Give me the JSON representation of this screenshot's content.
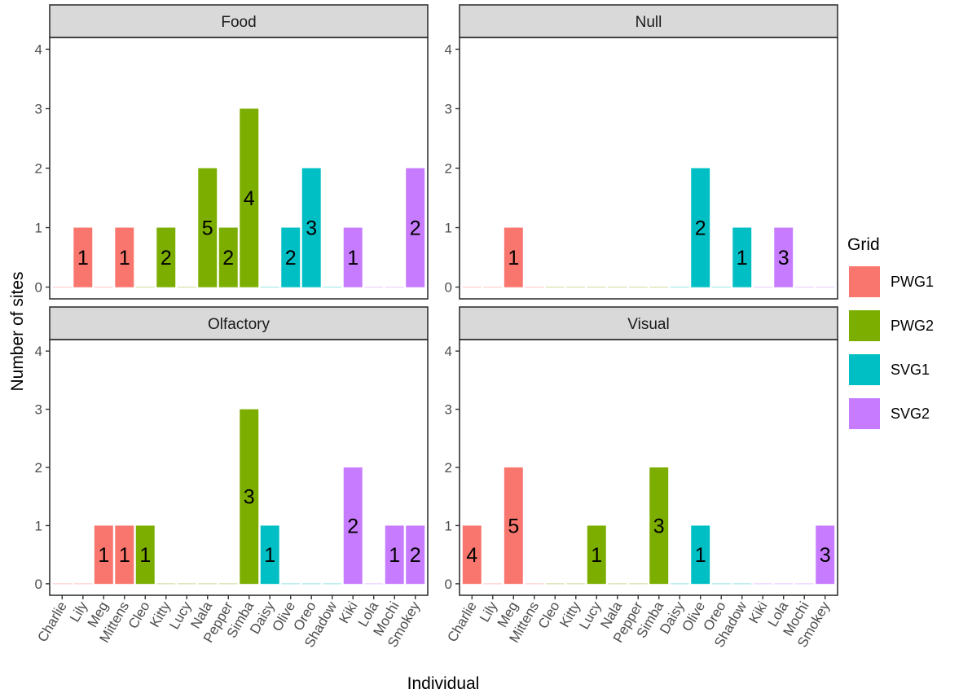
{
  "chart_data": {
    "type": "bar",
    "facet_layout": "2x2 panels",
    "xlabel": "Individual",
    "ylabel": "Number of sites",
    "ylim": [
      0,
      4
    ],
    "yticks": [
      0,
      1,
      2,
      3,
      4
    ],
    "grid": false,
    "categories": [
      "Charlie",
      "Lily",
      "Meg",
      "Mittens",
      "Cleo",
      "Kitty",
      "Lucy",
      "Nala",
      "Pepper",
      "Simba",
      "Daisy",
      "Olive",
      "Oreo",
      "Shadow",
      "Kiki",
      "Lola",
      "Mochi",
      "Smokey"
    ],
    "category_group": {
      "Charlie": "PWG1",
      "Lily": "PWG1",
      "Meg": "PWG1",
      "Mittens": "PWG1",
      "Cleo": "PWG2",
      "Kitty": "PWG2",
      "Lucy": "PWG2",
      "Nala": "PWG2",
      "Pepper": "PWG2",
      "Simba": "PWG2",
      "Daisy": "SVG1",
      "Olive": "SVG1",
      "Oreo": "SVG1",
      "Shadow": "SVG1",
      "Kiki": "SVG2",
      "Lola": "SVG2",
      "Mochi": "SVG2",
      "Smokey": "SVG2"
    },
    "legend": {
      "title": "Grid",
      "position": "right",
      "items": [
        {
          "name": "PWG1",
          "color": "#F8766D"
        },
        {
          "name": "PWG2",
          "color": "#7CAE00"
        },
        {
          "name": "SVG1",
          "color": "#00BFC4"
        },
        {
          "name": "SVG2",
          "color": "#C77CFF"
        }
      ]
    },
    "panels": [
      {
        "title": "Food",
        "bars": [
          {
            "x": "Lily",
            "value": 1,
            "label": "1"
          },
          {
            "x": "Mittens",
            "value": 1,
            "label": "1"
          },
          {
            "x": "Kitty",
            "value": 1,
            "label": "2"
          },
          {
            "x": "Nala",
            "value": 2,
            "label": "5"
          },
          {
            "x": "Pepper",
            "value": 1,
            "label": "2"
          },
          {
            "x": "Simba",
            "value": 3,
            "label": "4"
          },
          {
            "x": "Olive",
            "value": 1,
            "label": "2"
          },
          {
            "x": "Oreo",
            "value": 2,
            "label": "3"
          },
          {
            "x": "Kiki",
            "value": 1,
            "label": "1"
          },
          {
            "x": "Smokey",
            "value": 2,
            "label": "2"
          }
        ]
      },
      {
        "title": "Null",
        "bars": [
          {
            "x": "Meg",
            "value": 1,
            "label": "1"
          },
          {
            "x": "Olive",
            "value": 2,
            "label": "2"
          },
          {
            "x": "Shadow",
            "value": 1,
            "label": "1"
          },
          {
            "x": "Lola",
            "value": 1,
            "label": "3"
          }
        ]
      },
      {
        "title": "Olfactory",
        "bars": [
          {
            "x": "Meg",
            "value": 1,
            "label": "1"
          },
          {
            "x": "Mittens",
            "value": 1,
            "label": "1"
          },
          {
            "x": "Cleo",
            "value": 1,
            "label": "1"
          },
          {
            "x": "Simba",
            "value": 3,
            "label": "3"
          },
          {
            "x": "Daisy",
            "value": 1,
            "label": "1"
          },
          {
            "x": "Kiki",
            "value": 2,
            "label": "2"
          },
          {
            "x": "Mochi",
            "value": 1,
            "label": "1"
          },
          {
            "x": "Smokey",
            "value": 1,
            "label": "2"
          }
        ]
      },
      {
        "title": "Visual",
        "bars": [
          {
            "x": "Charlie",
            "value": 1,
            "label": "4"
          },
          {
            "x": "Meg",
            "value": 2,
            "label": "5"
          },
          {
            "x": "Lucy",
            "value": 1,
            "label": "1"
          },
          {
            "x": "Simba",
            "value": 2,
            "label": "3"
          },
          {
            "x": "Olive",
            "value": 1,
            "label": "1"
          },
          {
            "x": "Smokey",
            "value": 1,
            "label": "3"
          }
        ]
      }
    ]
  }
}
